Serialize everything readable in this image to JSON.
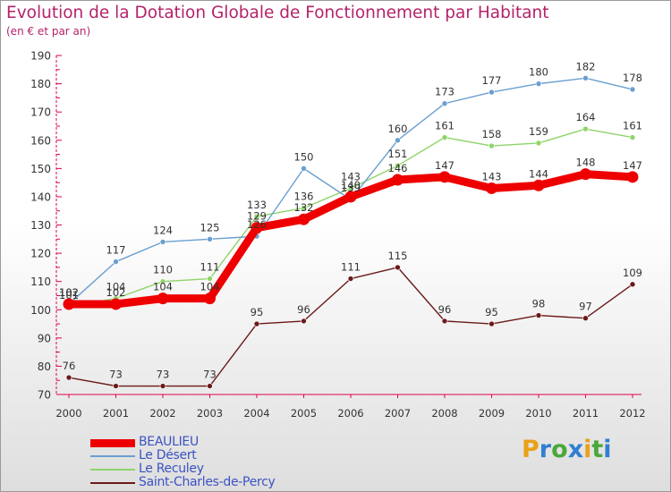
{
  "title": "Evolution de la Dotation Globale de Fonctionnement par Habitant",
  "subtitle": "(en € et par an)",
  "logo": {
    "text": "Proxiti",
    "letters": [
      "P",
      "r",
      "o",
      "x",
      "i",
      "t",
      "i"
    ],
    "colors": [
      "#e8a21a",
      "#2f7fd1",
      "#4aa83a",
      "#2f7fd1",
      "#e8a21a",
      "#4aa83a",
      "#2f7fd1"
    ]
  },
  "chart_data": {
    "type": "line",
    "title": "Evolution de la Dotation Globale de Fonctionnement par Habitant",
    "ylabel": "(en € et par an)",
    "xlabel": "",
    "x": [
      "2000",
      "2001",
      "2002",
      "2003",
      "2004",
      "2005",
      "2006",
      "2007",
      "2008",
      "2009",
      "2010",
      "2011",
      "2012"
    ],
    "ylim": [
      70,
      190
    ],
    "yticks": [
      70,
      80,
      90,
      100,
      110,
      120,
      130,
      140,
      150,
      160,
      170,
      180,
      190
    ],
    "grid": false,
    "legend": "bottom-left",
    "series": [
      {
        "name": "Saint-Charles-de-Percy",
        "color": "#6b1a1a",
        "values": [
          76,
          73,
          73,
          73,
          95,
          96,
          111,
          115,
          96,
          95,
          98,
          97,
          109
        ]
      },
      {
        "name": "Le Reculey",
        "color": "#8fd46a",
        "values": [
          101,
          104,
          110,
          111,
          133,
          136,
          143,
          151,
          161,
          158,
          159,
          164,
          161
        ]
      },
      {
        "name": "Le Désert",
        "color": "#6a9fd0",
        "values": [
          102,
          117,
          124,
          125,
          126,
          150,
          139,
          160,
          173,
          177,
          180,
          182,
          178
        ]
      },
      {
        "name": "BEAULIEU",
        "color": "#ee0000",
        "values": [
          102,
          102,
          104,
          104,
          129,
          132,
          140,
          146,
          147,
          143,
          144,
          148,
          147
        ]
      }
    ],
    "point_labels": {
      "Saint-Charles-de-Percy": [
        "76",
        "73",
        "73",
        "73",
        "95",
        "96",
        "111",
        "115",
        "96",
        "95",
        "98",
        "97",
        "109"
      ],
      "Le Reculey": [
        "101",
        "104",
        "110",
        "111",
        "133",
        "136",
        "143",
        "151",
        "161",
        "158",
        "159",
        "164",
        "161"
      ],
      "Le Désert": [
        "102",
        "117",
        "124",
        "125",
        "126",
        "150",
        "139",
        "160",
        "173",
        "177",
        "180",
        "182",
        "178"
      ],
      "BEAULIEU": [
        "102",
        "102",
        "104",
        "104",
        "129",
        "132",
        "140",
        "146",
        "147",
        "143",
        "144",
        "148",
        "147"
      ]
    },
    "legend_items": [
      {
        "name": "BEAULIEU",
        "color": "#ee0000"
      },
      {
        "name": "Le Désert",
        "color": "#6a9fd0"
      },
      {
        "name": "Le Reculey",
        "color": "#8fd46a"
      },
      {
        "name": "Saint-Charles-de-Percy",
        "color": "#6b1a1a"
      }
    ]
  }
}
